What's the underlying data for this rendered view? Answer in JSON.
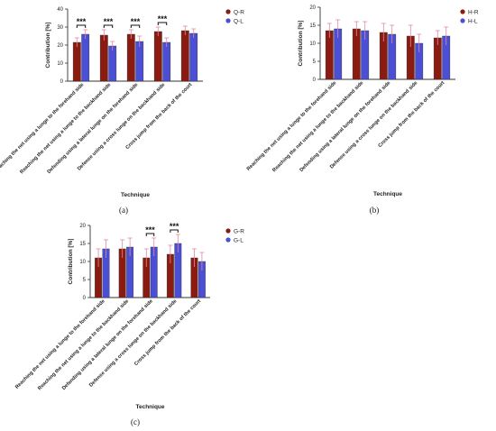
{
  "colors": {
    "right": "#8b1a10",
    "left": "#4a4fd6",
    "error": "#e08aa0",
    "bar_edge": "#333333"
  },
  "chart_data": [
    {
      "type": "bar",
      "panel_label": "(a)",
      "ylabel": "Contribution [%]",
      "xlabel": "Technique",
      "ylim": [
        0,
        40
      ],
      "yticks": [
        "0",
        "10",
        "20",
        "30",
        "40"
      ],
      "categories": [
        "Reaching the net using a lunge to the forehand side",
        "Reaching the net using a lunge to the backhand side",
        "Defending using a lateral lunge on the forehand side",
        "Defense using a cross lunge on the backhand side",
        "Cross jump from the back of the court"
      ],
      "series": [
        {
          "name": "Q-R",
          "color_key": "right",
          "values": [
            21.5,
            25.5,
            26,
            27.5,
            28
          ],
          "errors": [
            2.5,
            3,
            2.5,
            2.5,
            2.5
          ]
        },
        {
          "name": "Q-L",
          "color_key": "left",
          "values": [
            26,
            19.5,
            22,
            21.5,
            26.5
          ],
          "errors": [
            2.5,
            2.5,
            3,
            2.5,
            2.5
          ]
        }
      ],
      "significance": [
        {
          "category_index": 0,
          "label": "***"
        },
        {
          "category_index": 1,
          "label": "***"
        },
        {
          "category_index": 2,
          "label": "***"
        },
        {
          "category_index": 3,
          "label": "***"
        }
      ]
    },
    {
      "type": "bar",
      "panel_label": "(b)",
      "ylabel": "Contribution [%]",
      "xlabel": "Technique",
      "ylim": [
        0,
        20
      ],
      "yticks": [
        "0",
        "5",
        "10",
        "15",
        "20"
      ],
      "categories": [
        "Reaching the net using a lunge to the forehand side",
        "Reaching the net using a lunge to the backhand side",
        "Defending using a lateral lunge on the forehand side",
        "Defense using a cross lunge on the backhand side",
        "Cross jump from the back of the court"
      ],
      "series": [
        {
          "name": "H-R",
          "color_key": "right",
          "values": [
            13.5,
            14,
            13,
            12,
            11.5
          ],
          "errors": [
            2,
            2,
            2.5,
            3,
            2
          ]
        },
        {
          "name": "H-L",
          "color_key": "left",
          "values": [
            14,
            13.5,
            12.5,
            10,
            12
          ],
          "errors": [
            2.5,
            2.5,
            2.5,
            2.5,
            2.5
          ]
        }
      ],
      "significance": []
    },
    {
      "type": "bar",
      "panel_label": "(c)",
      "ylabel": "Contribution [%]",
      "xlabel": "Technique",
      "ylim": [
        0,
        20
      ],
      "yticks": [
        "0",
        "5",
        "10",
        "15",
        "20"
      ],
      "categories": [
        "Reaching the net using a lunge to the forehand side",
        "Reaching the net using a lunge to the backhand side",
        "Defending using a lateral lunge on the forehand side",
        "Defense using a cross lunge on the backhand side",
        "Cross jump from the back of the court"
      ],
      "series": [
        {
          "name": "G-R",
          "color_key": "right",
          "values": [
            11,
            13.5,
            11,
            12,
            11
          ],
          "errors": [
            2.5,
            2.5,
            2.5,
            2.5,
            2.5
          ]
        },
        {
          "name": "G-L",
          "color_key": "left",
          "values": [
            13.5,
            14,
            14,
            15,
            10
          ],
          "errors": [
            2.5,
            2.5,
            2.5,
            2.5,
            2.5
          ]
        }
      ],
      "significance": [
        {
          "category_index": 2,
          "label": "***"
        },
        {
          "category_index": 3,
          "label": "***"
        }
      ]
    }
  ]
}
